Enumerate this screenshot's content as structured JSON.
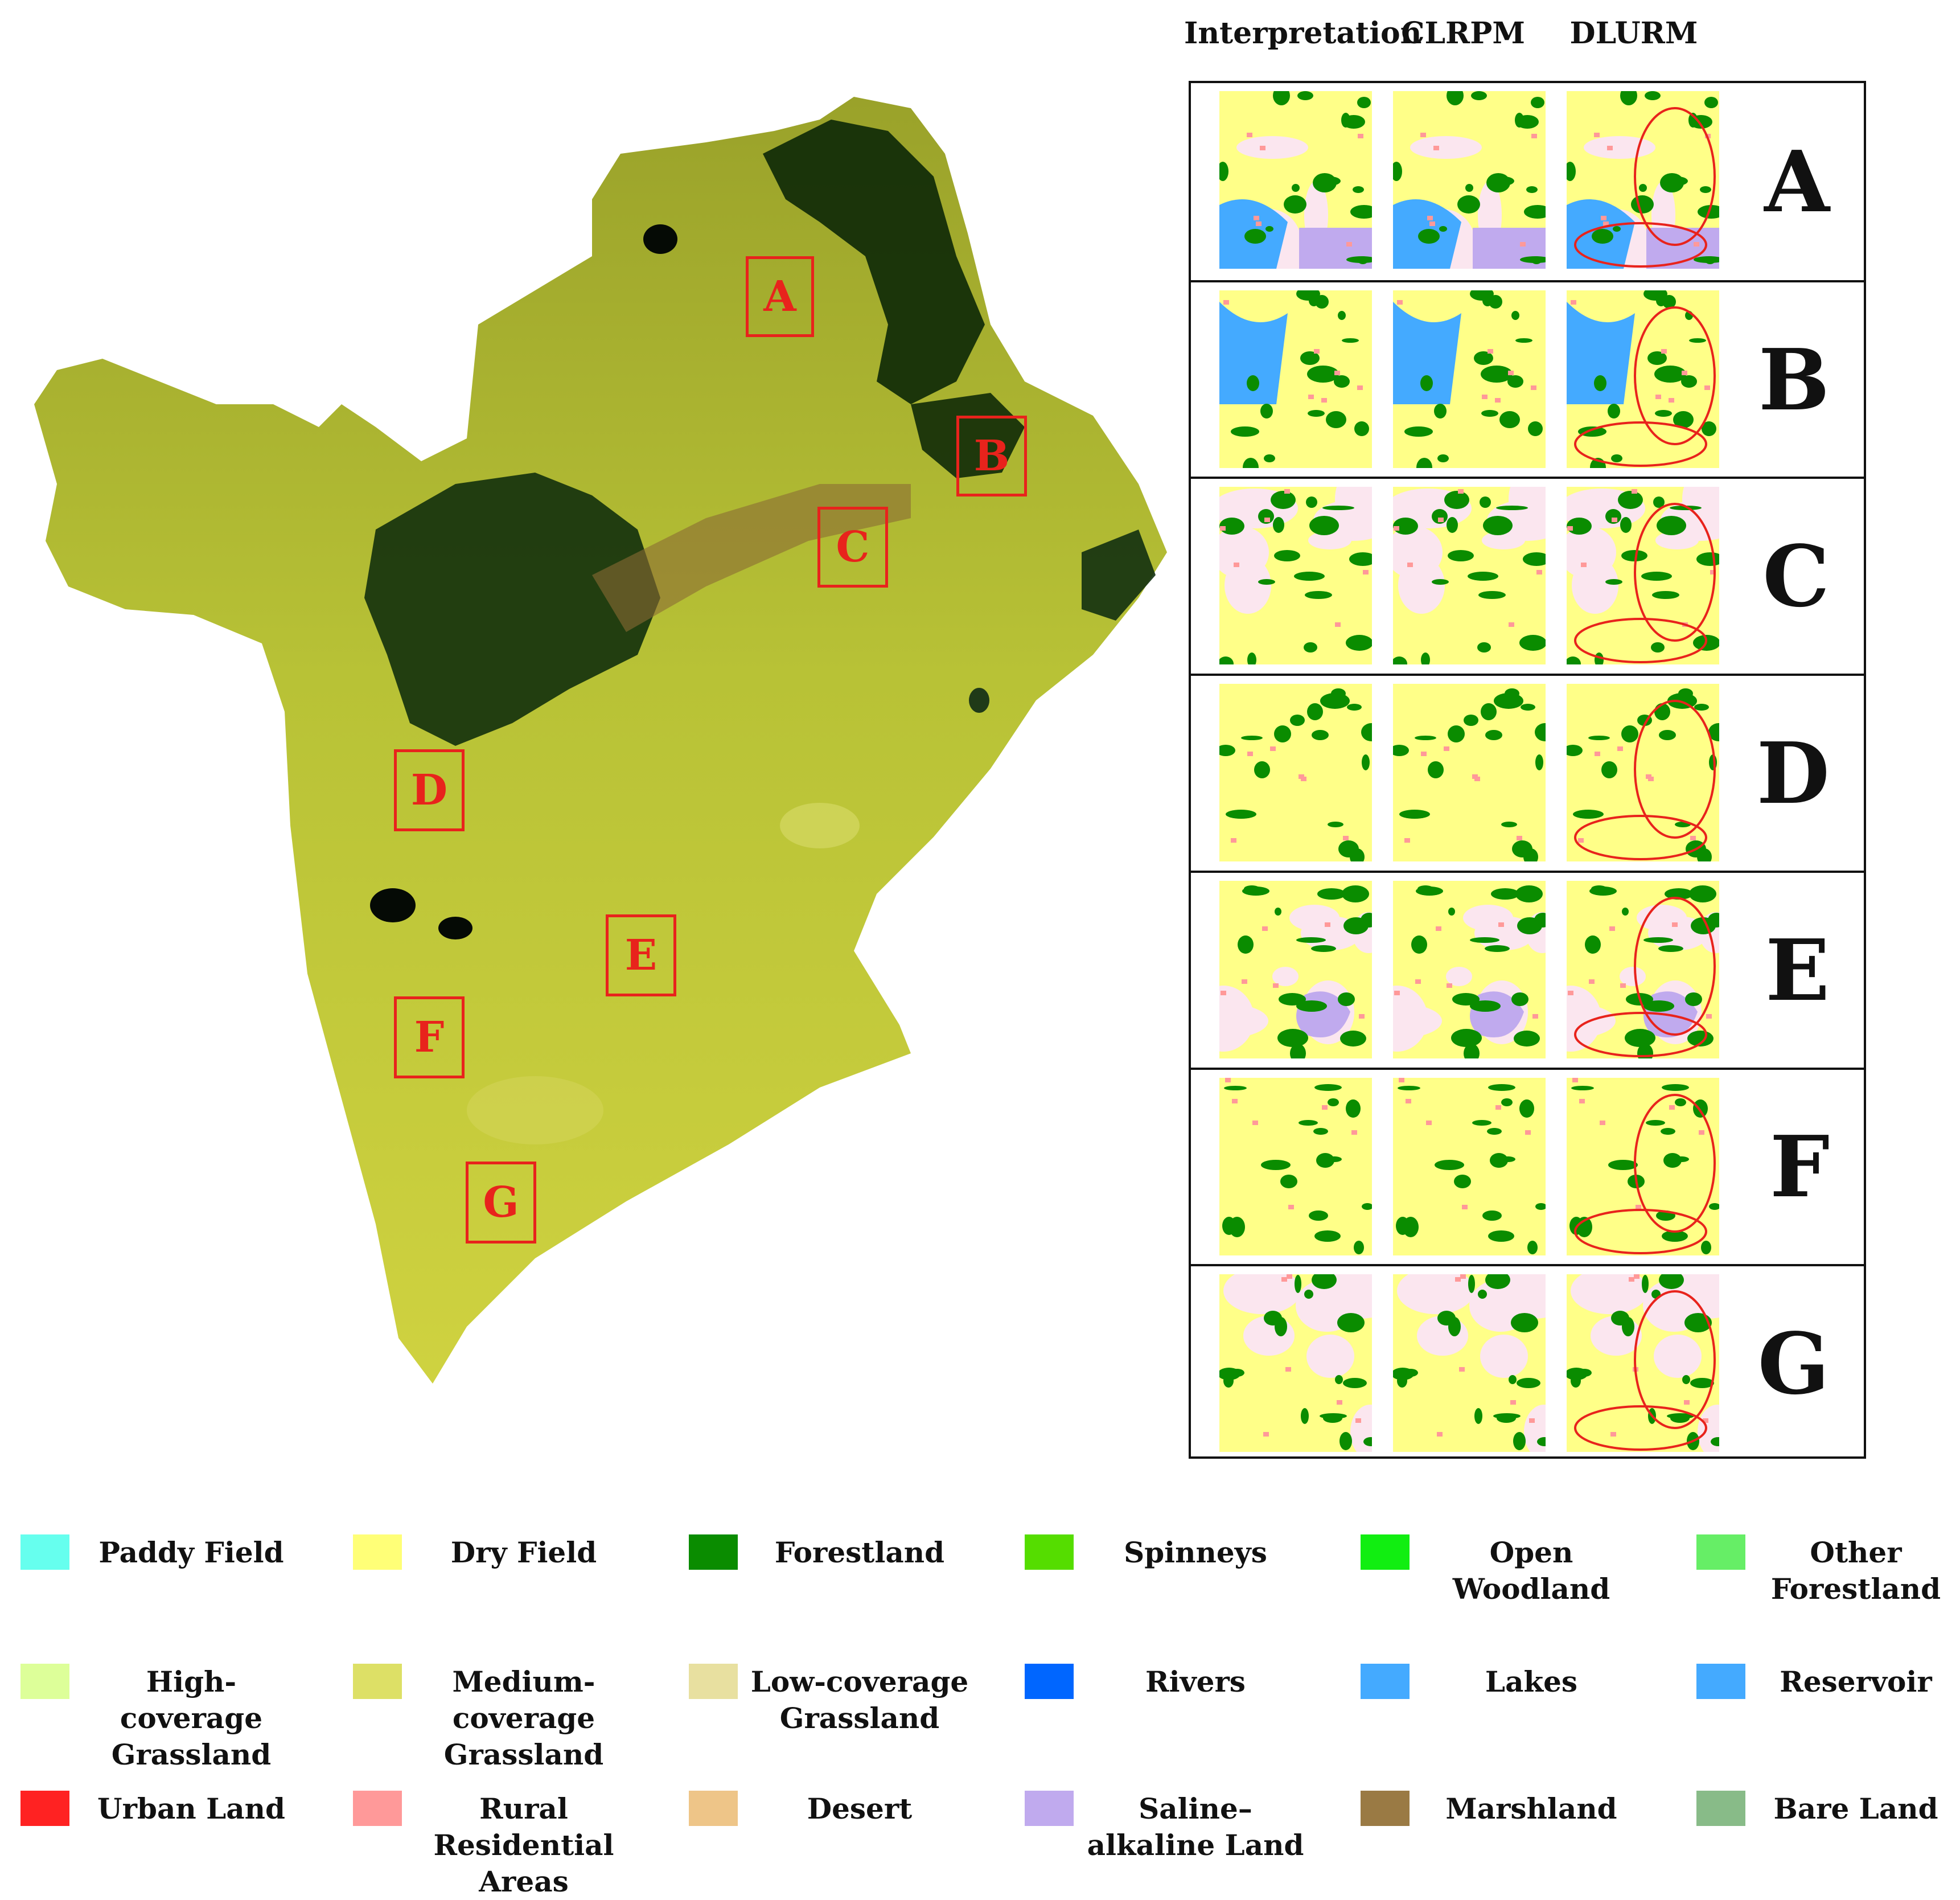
{
  "columns": [
    "Interpretation",
    "CLRPM",
    "DLURM"
  ],
  "regions": [
    "A",
    "B",
    "C",
    "D",
    "E",
    "F",
    "G"
  ],
  "legend": [
    {
      "label": "Paddy Field",
      "color": "#66ffee"
    },
    {
      "label": "Dry Field",
      "color": "#ffff77"
    },
    {
      "label": "Forestland",
      "color": "#0a8c00"
    },
    {
      "label": "Spinneys",
      "color": "#55dd00"
    },
    {
      "label": "Open Woodland",
      "color": "#11ee11"
    },
    {
      "label": "Other Forestland",
      "color": "#66ee66"
    },
    {
      "label": "High-coverage Grassland",
      "color": "#ddff99"
    },
    {
      "label": "Medium-coverage Grassland",
      "color": "#dde066"
    },
    {
      "label": "Low-coverage Grassland",
      "color": "#e8e0a0"
    },
    {
      "label": "Rivers",
      "color": "#0066ff"
    },
    {
      "label": "Lakes",
      "color": "#44aaff"
    },
    {
      "label": "Reservoir",
      "color": "#44aaff"
    },
    {
      "label": "Urban Land",
      "color": "#ff2222"
    },
    {
      "label": "Rural Residential Areas",
      "color": "#ff9999"
    },
    {
      "label": "Desert",
      "color": "#eec588"
    },
    {
      "label": "Saline–alkaline Land",
      "color": "#c0aaee"
    },
    {
      "label": "Marshland",
      "color": "#9a7a44"
    },
    {
      "label": "Bare Land",
      "color": "#88bb88"
    }
  ]
}
